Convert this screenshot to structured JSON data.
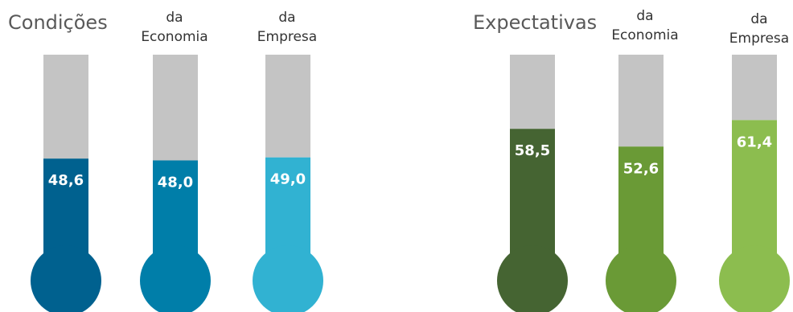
{
  "groups": [
    {
      "title": "Condições"
    },
    {
      "title": "Expectativas"
    }
  ],
  "category_labels": {
    "economy_line1": "da",
    "economy_line2": "Economia",
    "company_line1": "da",
    "company_line2": "Empresa"
  },
  "colors": {
    "track": "#c4c4c4",
    "condicoes_geral": "#00618f",
    "condicoes_economia": "#007ea9",
    "condicoes_empresa": "#31b2d2",
    "expectativas_geral": "#456432",
    "expectativas_economia": "#6a9a36",
    "expectativas_empresa": "#8cbd4f",
    "value_text": "#ffffff"
  },
  "chart_data": [
    {
      "type": "bar",
      "title": "Condições",
      "categories": [
        "",
        "da Economia",
        "da Empresa"
      ],
      "values": [
        48.6,
        48.0,
        49.0
      ],
      "labels": [
        "48,6",
        "48,0",
        "49,0"
      ],
      "ylim": [
        0,
        100
      ]
    },
    {
      "type": "bar",
      "title": "Expectativas",
      "categories": [
        "",
        "da Economia",
        "da Empresa"
      ],
      "values": [
        58.5,
        52.6,
        61.4
      ],
      "labels": [
        "58,5",
        "52,6",
        "61,4"
      ],
      "ylim": [
        0,
        100
      ]
    }
  ]
}
